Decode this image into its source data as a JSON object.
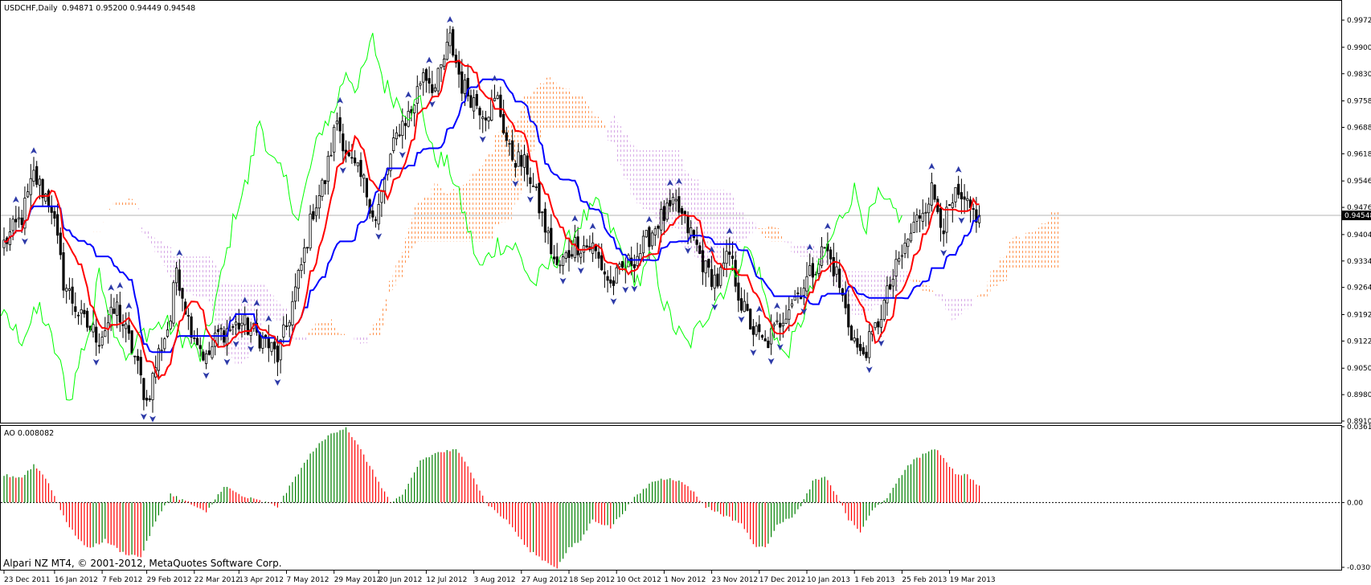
{
  "window": {
    "title": "USDCHF,Daily",
    "ohlc": "0.94871 0.95200 0.94449 0.94548",
    "copyright": "Alpari NZ MT4, © 2001-2012, MetaQuotes Software Corp."
  },
  "chart_data": [
    {
      "type": "candlestick",
      "name": "USDCHF,Daily",
      "title": "USDCHF,Daily",
      "current_price": 0.94548,
      "current_price_label": "0.94548",
      "ylim": [
        0.891,
        1.0004
      ],
      "y_ticks": [
        0.9972,
        0.99,
        0.983,
        0.9758,
        0.9688,
        0.9618,
        0.9546,
        0.9476,
        0.9404,
        0.9334,
        0.9264,
        0.9192,
        0.9122,
        0.905,
        0.898,
        0.891
      ],
      "y_tick_labels": [
        "0.99720",
        "0.99000",
        "0.98300",
        "0.97580",
        "0.96880",
        "0.96180",
        "0.95460",
        "0.94760",
        "0.94040",
        "0.93340",
        "0.92640",
        "0.91920",
        "0.91220",
        "0.90500",
        "0.89800",
        "0.89100"
      ],
      "x_labels": [
        {
          "i": 0,
          "label": "23 Dec 2011"
        },
        {
          "i": 17,
          "label": "16 Jan 2012"
        },
        {
          "i": 33,
          "label": "7 Feb 2012"
        },
        {
          "i": 48,
          "label": "29 Feb 2012"
        },
        {
          "i": 64,
          "label": "22 Mar 2012"
        },
        {
          "i": 79,
          "label": "13 Apr 2012"
        },
        {
          "i": 95,
          "label": "7 May 2012"
        },
        {
          "i": 111,
          "label": "29 May 2012"
        },
        {
          "i": 126,
          "label": "20 Jun 2012"
        },
        {
          "i": 142,
          "label": "12 Jul 2012"
        },
        {
          "i": 158,
          "label": "3 Aug 2012"
        },
        {
          "i": 174,
          "label": "27 Aug 2012"
        },
        {
          "i": 190,
          "label": "18 Sep 2012"
        },
        {
          "i": 206,
          "label": "10 Oct 2012"
        },
        {
          "i": 222,
          "label": "1 Nov 2012"
        },
        {
          "i": 238,
          "label": "23 Nov 2012"
        },
        {
          "i": 254,
          "label": "17 Dec 2012"
        },
        {
          "i": 270,
          "label": "10 Jan 2013"
        },
        {
          "i": 286,
          "label": "1 Feb 2013"
        },
        {
          "i": 302,
          "label": "25 Feb 2013"
        },
        {
          "i": 318,
          "label": "19 Mar 2013"
        }
      ],
      "bars_count": 329,
      "close_keypoints": [
        [
          0,
          0.938
        ],
        [
          6,
          0.945
        ],
        [
          10,
          0.956
        ],
        [
          16,
          0.948
        ],
        [
          20,
          0.928
        ],
        [
          26,
          0.918
        ],
        [
          32,
          0.913
        ],
        [
          38,
          0.921
        ],
        [
          44,
          0.908
        ],
        [
          48,
          0.896
        ],
        [
          52,
          0.909
        ],
        [
          56,
          0.918
        ],
        [
          58,
          0.932
        ],
        [
          62,
          0.918
        ],
        [
          68,
          0.907
        ],
        [
          72,
          0.914
        ],
        [
          80,
          0.917
        ],
        [
          88,
          0.912
        ],
        [
          92,
          0.908
        ],
        [
          96,
          0.919
        ],
        [
          100,
          0.932
        ],
        [
          104,
          0.947
        ],
        [
          108,
          0.955
        ],
        [
          112,
          0.971
        ],
        [
          116,
          0.96
        ],
        [
          121,
          0.954
        ],
        [
          125,
          0.944
        ],
        [
          129,
          0.958
        ],
        [
          133,
          0.969
        ],
        [
          137,
          0.973
        ],
        [
          141,
          0.984
        ],
        [
          145,
          0.979
        ],
        [
          150,
          0.992
        ],
        [
          154,
          0.98
        ],
        [
          158,
          0.976
        ],
        [
          162,
          0.973
        ],
        [
          166,
          0.976
        ],
        [
          170,
          0.962
        ],
        [
          176,
          0.958
        ],
        [
          181,
          0.945
        ],
        [
          186,
          0.931
        ],
        [
          192,
          0.938
        ],
        [
          198,
          0.937
        ],
        [
          204,
          0.927
        ],
        [
          208,
          0.931
        ],
        [
          214,
          0.936
        ],
        [
          220,
          0.944
        ],
        [
          226,
          0.948
        ],
        [
          232,
          0.939
        ],
        [
          236,
          0.931
        ],
        [
          240,
          0.928
        ],
        [
          244,
          0.935
        ],
        [
          248,
          0.922
        ],
        [
          252,
          0.915
        ],
        [
          256,
          0.911
        ],
        [
          260,
          0.916
        ],
        [
          264,
          0.922
        ],
        [
          268,
          0.926
        ],
        [
          272,
          0.931
        ],
        [
          276,
          0.937
        ],
        [
          280,
          0.93
        ],
        [
          284,
          0.917
        ],
        [
          288,
          0.908
        ],
        [
          292,
          0.913
        ],
        [
          296,
          0.922
        ],
        [
          300,
          0.931
        ],
        [
          304,
          0.939
        ],
        [
          308,
          0.946
        ],
        [
          312,
          0.952
        ],
        [
          316,
          0.943
        ],
        [
          320,
          0.95
        ],
        [
          324,
          0.947
        ],
        [
          328,
          0.94548
        ]
      ]
    },
    {
      "type": "histogram",
      "name": "AO",
      "title": "AO 0.008082",
      "current_value": 0.008082,
      "ylim": [
        -0.03092,
        0.03619
      ],
      "y_ticks": [
        0.03619,
        0.0,
        -0.03092
      ],
      "y_tick_labels": [
        "0.03619",
        "0.00",
        "-0.03092"
      ],
      "colors": {
        "up": "#008000",
        "down": "#ff0000"
      },
      "value_keypoints": [
        [
          0,
          0.013
        ],
        [
          6,
          0.012
        ],
        [
          10,
          0.018
        ],
        [
          14,
          0.012
        ],
        [
          18,
          0.0
        ],
        [
          22,
          -0.012
        ],
        [
          28,
          -0.022
        ],
        [
          34,
          -0.018
        ],
        [
          40,
          -0.024
        ],
        [
          46,
          -0.026
        ],
        [
          50,
          -0.012
        ],
        [
          56,
          0.004
        ],
        [
          62,
          0.0
        ],
        [
          68,
          -0.005
        ],
        [
          74,
          0.008
        ],
        [
          80,
          0.003
        ],
        [
          88,
          0.0
        ],
        [
          92,
          -0.002
        ],
        [
          98,
          0.012
        ],
        [
          104,
          0.025
        ],
        [
          110,
          0.033
        ],
        [
          115,
          0.036
        ],
        [
          120,
          0.025
        ],
        [
          126,
          0.01
        ],
        [
          130,
          0.0
        ],
        [
          134,
          0.003
        ],
        [
          140,
          0.02
        ],
        [
          146,
          0.024
        ],
        [
          152,
          0.025
        ],
        [
          156,
          0.018
        ],
        [
          162,
          0.0
        ],
        [
          170,
          -0.01
        ],
        [
          176,
          -0.022
        ],
        [
          182,
          -0.028
        ],
        [
          186,
          -0.031
        ],
        [
          190,
          -0.022
        ],
        [
          194,
          -0.018
        ],
        [
          198,
          -0.008
        ],
        [
          204,
          -0.012
        ],
        [
          208,
          -0.005
        ],
        [
          212,
          0.002
        ],
        [
          218,
          0.01
        ],
        [
          224,
          0.012
        ],
        [
          230,
          0.008
        ],
        [
          236,
          -0.002
        ],
        [
          242,
          -0.006
        ],
        [
          248,
          -0.01
        ],
        [
          252,
          -0.02
        ],
        [
          256,
          -0.022
        ],
        [
          260,
          -0.01
        ],
        [
          264,
          -0.008
        ],
        [
          268,
          -0.002
        ],
        [
          272,
          0.01
        ],
        [
          276,
          0.012
        ],
        [
          280,
          0.004
        ],
        [
          284,
          -0.008
        ],
        [
          288,
          -0.014
        ],
        [
          292,
          -0.004
        ],
        [
          298,
          0.004
        ],
        [
          304,
          0.018
        ],
        [
          310,
          0.024
        ],
        [
          314,
          0.025
        ],
        [
          320,
          0.014
        ],
        [
          324,
          0.013
        ],
        [
          328,
          0.008082
        ]
      ]
    }
  ],
  "colors": {
    "tenkan": "#ff0000",
    "kijun": "#0000ff",
    "chikou": "#00ff00",
    "cloud_bull": "#ff8c3c",
    "cloud_bear": "#c896dc",
    "arrow": "#2d3aa8",
    "candle": "#000000",
    "grid_line": "#b4b4b4",
    "price_tag_bg": "#000000"
  }
}
